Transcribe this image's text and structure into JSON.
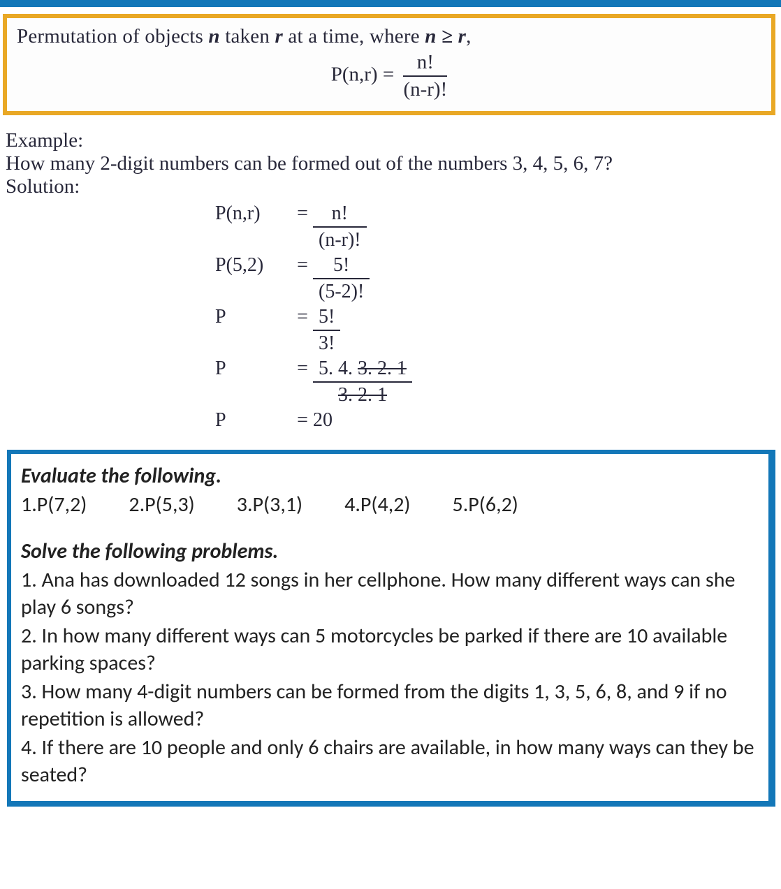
{
  "formula": {
    "title_pre": "Permutation of objects ",
    "title_var1": "n",
    "title_mid": " taken ",
    "title_var2": "r",
    "title_post": " at a time, where ",
    "title_cond": "n ≥ r",
    "title_end": ",",
    "lhs": "P(n,r) =",
    "num": "n!",
    "den": "(n-r)!",
    "border_color": "#e9a825"
  },
  "example": {
    "label": "Example:",
    "question": "How many 2-digit numbers can be formed out of the numbers 3, 4, 5, 6, 7?",
    "solution_label": "Solution:",
    "steps": [
      {
        "left": "P(n,r)",
        "num": "n!",
        "den": "(n-r)!"
      },
      {
        "left": "P(5,2)",
        "num": "5!",
        "den": "(5-2)!"
      },
      {
        "left": "P",
        "num": "5!",
        "den": "3!"
      },
      {
        "left": "P",
        "num_plain": "5. 4. ",
        "num_strike": "3. 2. 1",
        "den_strike": "3. 2. 1"
      },
      {
        "left": "P",
        "result": "20"
      }
    ]
  },
  "problems": {
    "border_color": "#1377b8",
    "eval_heading": "Evaluate the following.",
    "eval_items": [
      "1.P(7,2)",
      "2.P(5,3)",
      "3.P(3,1)",
      "4.P(4,2)",
      "5.P(6,2)"
    ],
    "solve_heading": "Solve the following problems.",
    "solve_items": [
      "1. Ana has downloaded 12 songs in her cellphone. How many different ways can she play 6 songs?",
      "2. In how many different ways can 5 motorcycles be parked if there are 10 available parking spaces?",
      "3. How many 4-digit numbers can be formed from the digits 1, 3, 5, 6, 8, and 9 if no repetition is allowed?",
      "4. If there are 10 people and only 6 chairs are available, in how many ways can they be seated?"
    ]
  },
  "colors": {
    "top_bar": "#1377b8",
    "text": "#28283a"
  }
}
